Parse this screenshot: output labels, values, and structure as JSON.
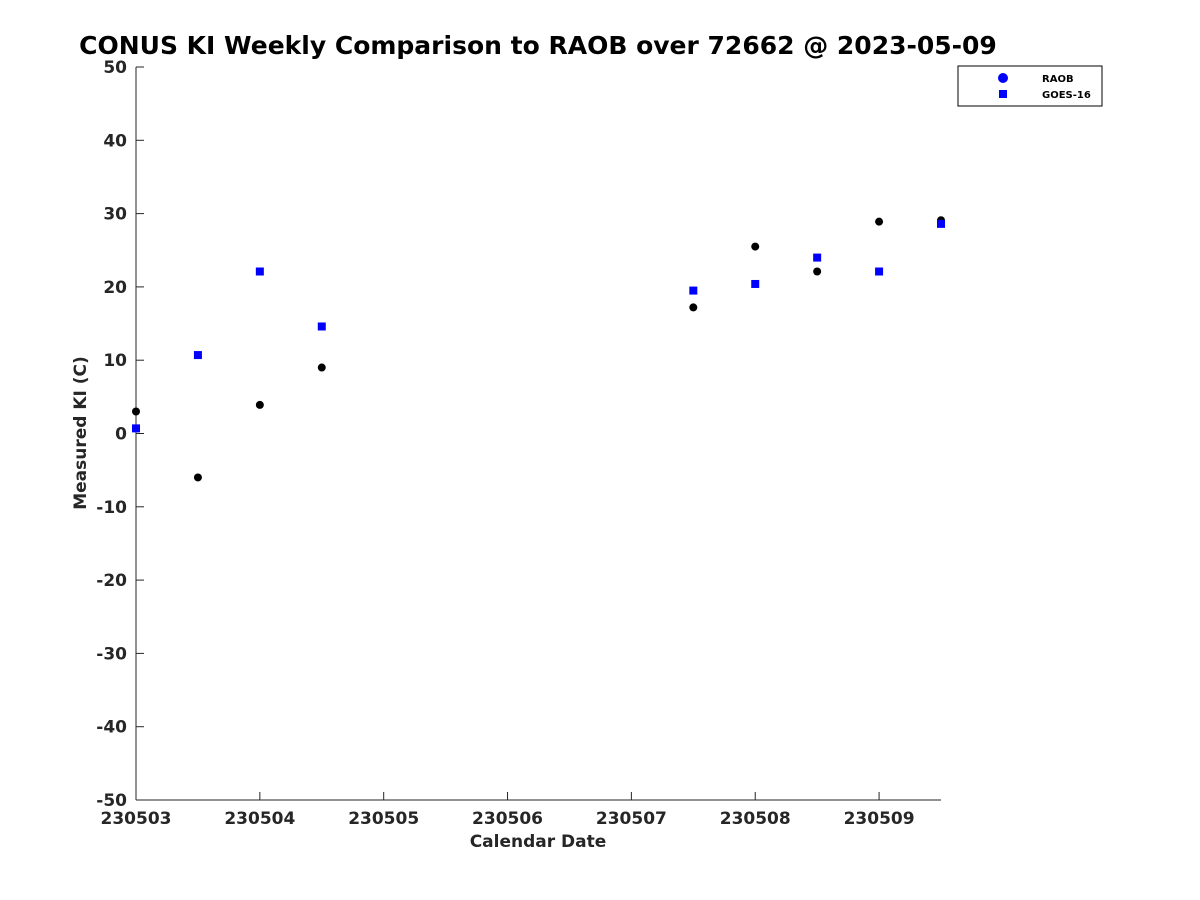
{
  "chart_data": {
    "type": "scatter",
    "title": "CONUS KI Weekly Comparison to RAOB over 72662 @ 2023-05-09",
    "xlabel": "Calendar Date",
    "ylabel": "Measured KI (C)",
    "x_tick_labels": [
      "230503",
      "230504",
      "230505",
      "230506",
      "230507",
      "230508",
      "230509"
    ],
    "y_ticks": [
      50,
      40,
      30,
      20,
      10,
      0,
      -10,
      -20,
      -30,
      -40,
      -50
    ],
    "xlim": [
      230503,
      230509.5
    ],
    "ylim": [
      -50,
      50
    ],
    "grid": false,
    "legend_position": "top-right",
    "series": [
      {
        "name": "RAOB",
        "marker": "circle",
        "color": "#000000",
        "legend_color": "#0000ff",
        "x": [
          230503,
          230503.5,
          230504,
          230504.5,
          230507.5,
          230508,
          230508.5,
          230509,
          230509.5
        ],
        "y": [
          3.0,
          -6.0,
          3.9,
          9.0,
          17.2,
          25.5,
          22.1,
          28.9,
          29.1
        ]
      },
      {
        "name": "GOES-16",
        "marker": "square",
        "color": "#0000ff",
        "legend_color": "#0000ff",
        "x": [
          230503,
          230503.5,
          230504,
          230504.5,
          230507.5,
          230508,
          230508.5,
          230509,
          230509.5
        ],
        "y": [
          0.7,
          10.7,
          22.1,
          14.6,
          19.5,
          20.4,
          24.0,
          22.1,
          28.6
        ]
      }
    ]
  }
}
